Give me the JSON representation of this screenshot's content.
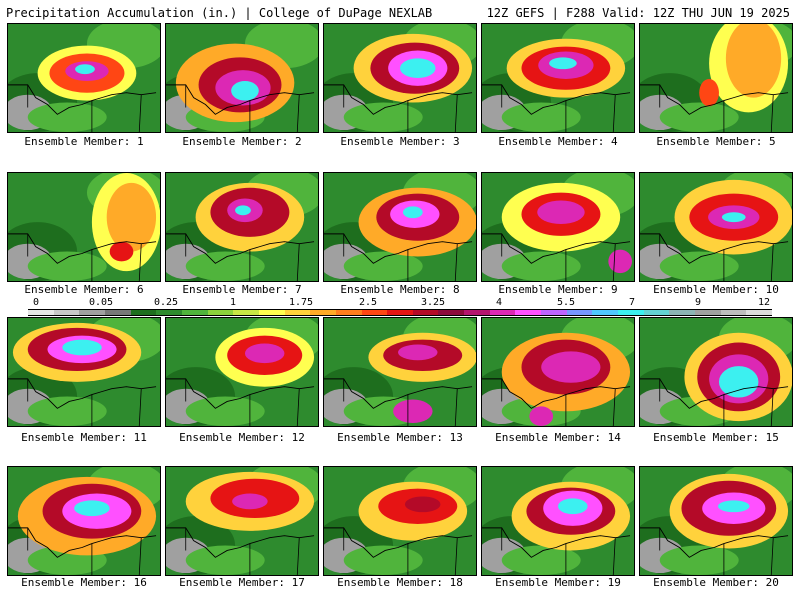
{
  "header": {
    "left": "Precipitation Accumulation (in.) | College of DuPage NEXLAB",
    "right": "12Z GEFS | F288 Valid: 12Z THU JUN 19 2025"
  },
  "members": [
    "Ensemble Member: 1",
    "Ensemble Member: 2",
    "Ensemble Member: 3",
    "Ensemble Member: 4",
    "Ensemble Member: 5",
    "Ensemble Member: 6",
    "Ensemble Member: 7",
    "Ensemble Member: 8",
    "Ensemble Member: 9",
    "Ensemble Member: 10",
    "Ensemble Member: 11",
    "Ensemble Member: 12",
    "Ensemble Member: 13",
    "Ensemble Member: 14",
    "Ensemble Member: 15",
    "Ensemble Member: 16",
    "Ensemble Member: 17",
    "Ensemble Member: 18",
    "Ensemble Member: 19",
    "Ensemble Member: 20"
  ],
  "colorbar": {
    "tick_labels": [
      "0",
      "0.05",
      "0.25",
      "1",
      "1.75",
      "2.5",
      "3.25",
      "4",
      "5.5",
      "7",
      "9",
      "12"
    ],
    "colors": [
      "#e6e6e6",
      "#c8c8c8",
      "#a0a0a0",
      "#787878",
      "#1e6e1e",
      "#2e8b2e",
      "#50b43c",
      "#8cd23c",
      "#c8e646",
      "#ffff50",
      "#ffd23c",
      "#ffaa28",
      "#ff7d1e",
      "#ff4614",
      "#e61414",
      "#b40a28",
      "#8c0a3c",
      "#b4146e",
      "#dc28b4",
      "#ff50ff",
      "#be64ff",
      "#7896ff",
      "#50c8ff",
      "#3cf0f0",
      "#64d2d2",
      "#8cb4b4",
      "#a0a0a0",
      "#bebebe",
      "#dcdcdc"
    ]
  }
}
